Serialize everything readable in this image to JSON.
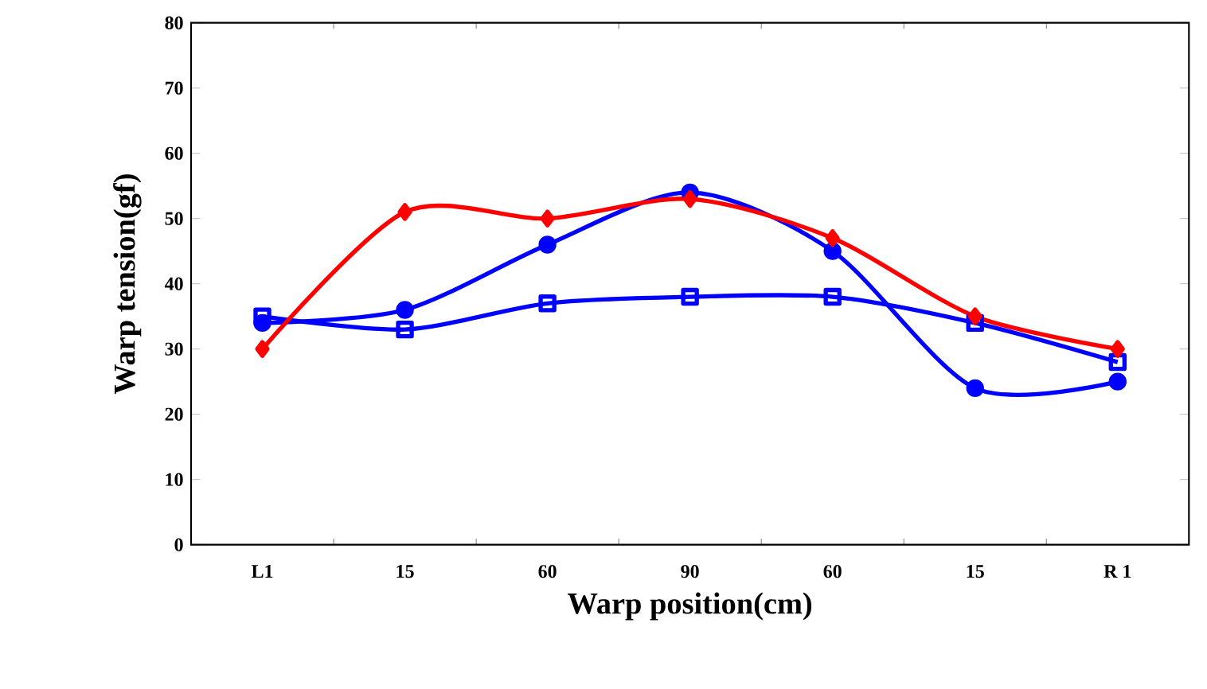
{
  "chart_data": {
    "type": "line",
    "xlabel": "Warp position(cm)",
    "ylabel": "Warp tension(gf)",
    "categories": [
      "L1",
      "15",
      "60",
      "90",
      "60",
      "15",
      "R 1"
    ],
    "ylim": [
      0,
      80
    ],
    "yticks": [
      0,
      10,
      20,
      30,
      40,
      50,
      60,
      70,
      80
    ],
    "series": [
      {
        "color": "#0000ff",
        "marker": "square",
        "values": [
          35,
          33,
          37,
          38,
          38,
          34,
          28
        ]
      },
      {
        "color": "#0000ff",
        "marker": "circle",
        "values": [
          34,
          36,
          46,
          54,
          45,
          24,
          25
        ]
      },
      {
        "color": "#ff0000",
        "marker": "diamond",
        "values": [
          30,
          51,
          50,
          53,
          47,
          35,
          30
        ]
      }
    ]
  }
}
